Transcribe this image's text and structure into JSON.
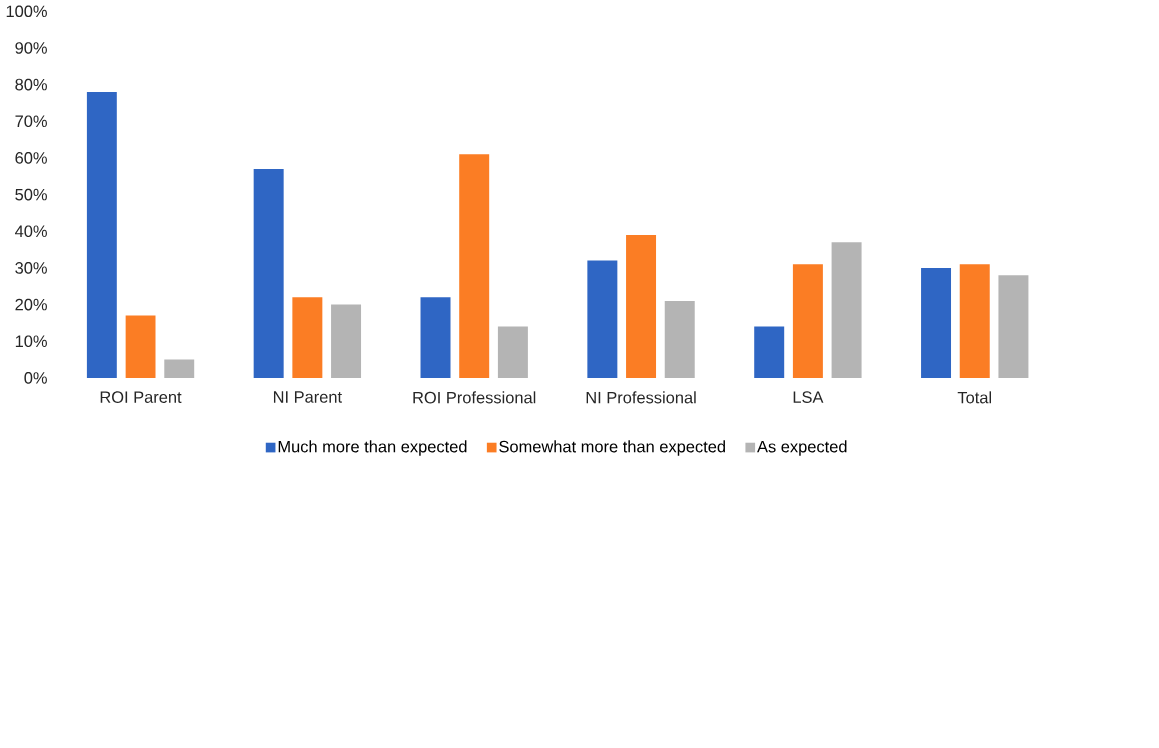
{
  "chart_data": {
    "type": "bar",
    "categories": [
      "ROI Parent",
      "NI Parent",
      "ROI Professional",
      "NI Professional",
      "LSA",
      "Total"
    ],
    "series": [
      {
        "name": "Much more than expected",
        "color": "#2f66c4",
        "values": [
          78,
          57,
          22,
          32,
          14,
          30
        ]
      },
      {
        "name": "Somewhat more than expected",
        "color": "#fb7d24",
        "values": [
          17,
          22,
          61,
          39,
          31,
          31
        ]
      },
      {
        "name": "As expected",
        "color": "#b4b4b4",
        "values": [
          5,
          20,
          14,
          21,
          37,
          28
        ]
      }
    ],
    "ylim": [
      0,
      100
    ],
    "yticks": [
      {
        "value": 0,
        "label": "0%"
      },
      {
        "value": 10,
        "label": "10%"
      },
      {
        "value": 20,
        "label": "20%"
      },
      {
        "value": 30,
        "label": "30%"
      },
      {
        "value": 40,
        "label": "40%"
      },
      {
        "value": 50,
        "label": "50%"
      },
      {
        "value": 60,
        "label": "60%"
      },
      {
        "value": 70,
        "label": "70%"
      },
      {
        "value": 80,
        "label": "80%"
      },
      {
        "value": 90,
        "label": "90%"
      },
      {
        "value": 100,
        "label": "100%"
      }
    ],
    "legend": "bottom"
  }
}
